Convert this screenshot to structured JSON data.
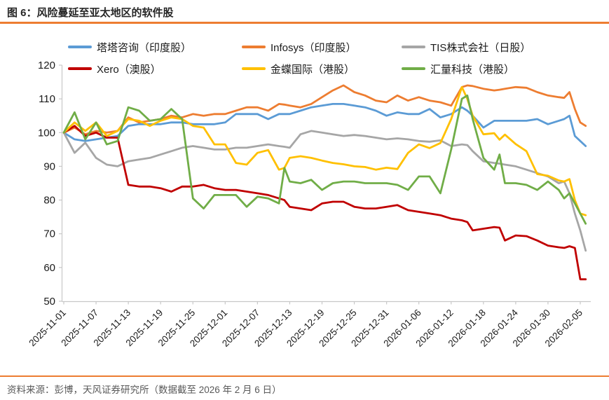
{
  "header": {
    "title": "图 6：风险蔓延至亚太地区的软件股"
  },
  "footer": {
    "source": "资料来源：彭博，天风证券研究所（数据截至 2026 年 2 月 6 日）"
  },
  "colors": {
    "accent_rule": "#ED7D31",
    "axis": "#C8C8C8",
    "title_text": "#262626",
    "source_text": "#595959"
  },
  "chart_data": {
    "type": "line",
    "figure_label": "图 6",
    "title": "风险蔓延至亚太地区的软件股",
    "legend_position": "top",
    "grid": false,
    "y_axis": {
      "min": 50,
      "max": 120,
      "step": 10
    },
    "x_tick_labels": [
      "2025-11-01",
      "2025-11-07",
      "2025-11-13",
      "2025-11-19",
      "2025-11-25",
      "2025-12-01",
      "2025-12-07",
      "2025-12-13",
      "2025-12-19",
      "2025-12-25",
      "2025-12-31",
      "2026-01-06",
      "2026-01-12",
      "2026-01-18",
      "2026-01-24",
      "2026-01-30",
      "2026-02-05"
    ],
    "dates": [
      "2025-11-01",
      "2025-11-03",
      "2025-11-05",
      "2025-11-07",
      "2025-11-09",
      "2025-11-11",
      "2025-11-13",
      "2025-11-15",
      "2025-11-17",
      "2025-11-19",
      "2025-11-21",
      "2025-11-23",
      "2025-11-25",
      "2025-11-27",
      "2025-11-29",
      "2025-12-01",
      "2025-12-03",
      "2025-12-05",
      "2025-12-07",
      "2025-12-09",
      "2025-12-11",
      "2025-12-12",
      "2025-12-13",
      "2025-12-15",
      "2025-12-17",
      "2025-12-19",
      "2025-12-21",
      "2025-12-23",
      "2025-12-25",
      "2025-12-27",
      "2025-12-29",
      "2025-12-31",
      "2026-01-02",
      "2026-01-04",
      "2026-01-06",
      "2026-01-08",
      "2026-01-10",
      "2026-01-12",
      "2026-01-14",
      "2026-01-15",
      "2026-01-16",
      "2026-01-18",
      "2026-01-20",
      "2026-01-21",
      "2026-01-22",
      "2026-01-24",
      "2026-01-26",
      "2026-01-28",
      "2026-01-30",
      "2026-02-01",
      "2026-02-02",
      "2026-02-03",
      "2026-02-04",
      "2026-02-05",
      "2026-02-06"
    ],
    "series": [
      {
        "key": "tata",
        "name": "塔塔咨询（印度股）",
        "color": "#5B9BD5",
        "values": [
          100,
          98,
          97.5,
          98,
          98.5,
          99,
          102,
          102.5,
          102.5,
          102.5,
          103,
          103,
          102.5,
          102.5,
          102.5,
          103,
          105.5,
          105.5,
          105.5,
          104,
          105.5,
          105.5,
          105.5,
          106.5,
          107.5,
          108,
          108.5,
          108.5,
          108,
          107.5,
          106.5,
          105,
          106,
          105.5,
          105.5,
          107,
          104.5,
          105.5,
          107.5,
          106.5,
          105,
          101.5,
          103.5,
          103.5,
          103.5,
          103.5,
          103.5,
          104,
          102.5,
          103.5,
          104,
          105,
          99,
          97.5,
          96
        ]
      },
      {
        "key": "infosys",
        "name": "Infosys（印度股）",
        "color": "#ED7D31",
        "values": [
          100,
          101.5,
          99.5,
          100.5,
          100,
          100.5,
          104.5,
          103,
          103.5,
          104,
          105,
          104.5,
          105.5,
          105,
          105.5,
          105.5,
          106.5,
          107.5,
          107.5,
          106.5,
          108.5,
          108.3,
          108,
          107.5,
          108.5,
          110.5,
          112.5,
          114,
          112,
          111,
          109.5,
          109,
          111,
          109.5,
          110.5,
          109.5,
          109,
          108,
          113.5,
          114,
          113.8,
          113,
          112.5,
          112.7,
          113,
          113.5,
          113.3,
          112,
          111,
          110.5,
          110.3,
          112,
          107,
          103,
          102
        ]
      },
      {
        "key": "tis",
        "name": "TIS株式会社（日股）",
        "color": "#A6A6A6",
        "values": [
          100,
          94,
          97,
          92.5,
          90.5,
          90,
          91.5,
          92,
          92.5,
          93.5,
          94.5,
          95.5,
          96,
          95.5,
          95,
          95,
          95.5,
          95.5,
          96,
          96.5,
          96,
          95.8,
          95.5,
          99.5,
          100.5,
          100,
          99.5,
          99,
          99.3,
          99,
          98.5,
          98,
          98.3,
          98,
          97.5,
          97.3,
          97.7,
          96,
          96.5,
          96.3,
          94.5,
          91.5,
          91,
          90.8,
          90.5,
          90,
          89,
          88,
          87,
          85,
          85.5,
          82,
          76,
          71,
          65
        ]
      },
      {
        "key": "xero",
        "name": "Xero（澳股）",
        "color": "#C00000",
        "values": [
          100,
          102,
          99,
          100,
          98.5,
          98.5,
          84.5,
          84,
          84,
          83.5,
          82.5,
          84,
          84,
          84.5,
          83.5,
          83,
          83,
          82.5,
          82,
          81.5,
          80.5,
          80,
          78,
          77.5,
          77,
          79,
          79.5,
          79.5,
          78,
          77.5,
          77.5,
          78,
          78.5,
          77,
          76.5,
          76,
          75.5,
          74.5,
          74,
          73.5,
          71,
          71.5,
          72,
          71.8,
          68,
          69.5,
          69.3,
          68,
          66.5,
          66,
          65.8,
          66.3,
          65.8,
          56.5,
          56.5
        ]
      },
      {
        "key": "kingdee",
        "name": "金蝶国际（港股）",
        "color": "#FFC000",
        "values": [
          100,
          103,
          100.5,
          103,
          99,
          100.5,
          104,
          103.5,
          102,
          103.5,
          104.5,
          104,
          102,
          101.5,
          96.5,
          96.5,
          91,
          90.5,
          94,
          94.8,
          89,
          89.5,
          92.5,
          93,
          92.5,
          91.7,
          91,
          90.6,
          90,
          89.8,
          89,
          89.6,
          89.2,
          94,
          96.5,
          95.4,
          96.9,
          104,
          113.5,
          110,
          105,
          99.5,
          99.8,
          97.9,
          99.4,
          96.6,
          94.5,
          87.7,
          87.2,
          85.8,
          85.5,
          86.2,
          80,
          76,
          75.5
        ]
      },
      {
        "key": "mobvista",
        "name": "汇量科技（港股）",
        "color": "#70AD47",
        "values": [
          100,
          106,
          98,
          103,
          96.5,
          97.5,
          107.5,
          106.5,
          103.5,
          104,
          107,
          104,
          80.5,
          77.5,
          81.5,
          81.5,
          81.5,
          78,
          81,
          80.5,
          79,
          89.5,
          85.5,
          85,
          86,
          83,
          85,
          85.5,
          85.5,
          85,
          85,
          85,
          84.5,
          83,
          87,
          87,
          82,
          95,
          110,
          111,
          104,
          92.5,
          89,
          93.5,
          85,
          85,
          84.5,
          83,
          85.5,
          83,
          80.5,
          82,
          79,
          76,
          73
        ]
      }
    ]
  }
}
